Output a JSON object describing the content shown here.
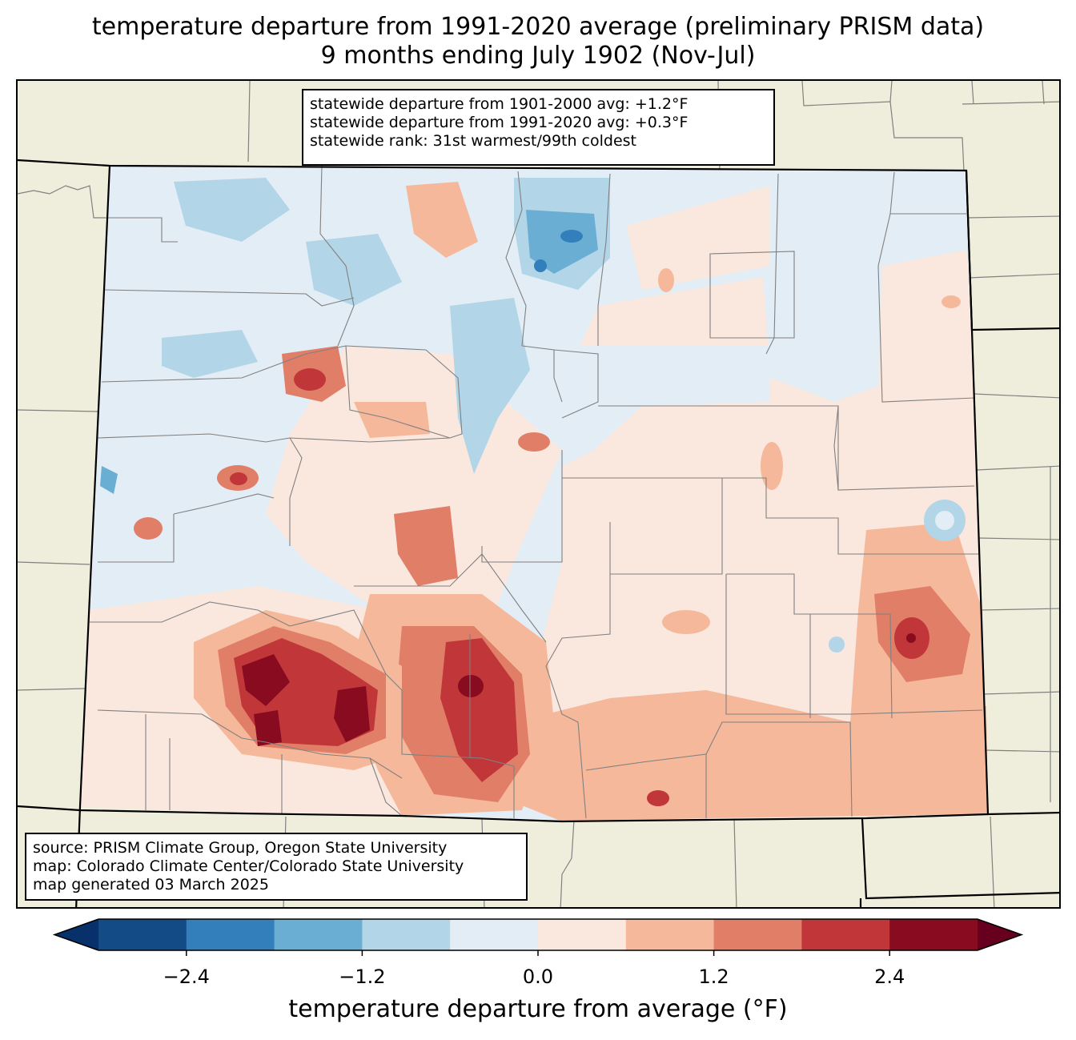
{
  "title": {
    "line1": "temperature departure from 1991-2020 average (preliminary PRISM data)",
    "line2": "9 months ending July 1902 (Nov-Jul)"
  },
  "stats": {
    "line1": "statewide departure from 1901-2000 avg: +1.2°F",
    "line2": "statewide departure from 1991-2020 avg: +0.3°F",
    "line3": "statewide rank: 31st warmest/99th coldest"
  },
  "source": {
    "line1": "source: PRISM Climate Group, Oregon State University",
    "line2": "map: Colorado Climate Center/Colorado State University",
    "line3": "map generated 03 March 2025"
  },
  "colorbar": {
    "label": "temperature departure from average (°F)",
    "ticks": [
      "−2.4",
      "−1.2",
      "0.0",
      "1.2",
      "2.4"
    ],
    "bins": [
      {
        "color": "#08306b",
        "range": "< -3.0"
      },
      {
        "color": "#134b87",
        "range": "-3.0 to -2.4"
      },
      {
        "color": "#327fbb",
        "range": "-2.4 to -1.8"
      },
      {
        "color": "#6aaed3",
        "range": "-1.8 to -1.2"
      },
      {
        "color": "#b2d5e7",
        "range": "-1.2 to -0.6"
      },
      {
        "color": "#e3edf5",
        "range": "-0.6 to 0.0"
      },
      {
        "color": "#fae8df",
        "range": "0.0 to 0.6"
      },
      {
        "color": "#f6b89b",
        "range": "0.6 to 1.2"
      },
      {
        "color": "#e17e68",
        "range": "1.2 to 1.8"
      },
      {
        "color": "#c13639",
        "range": "1.8 to 2.4"
      },
      {
        "color": "#880b20",
        "range": "2.4 to 3.0"
      },
      {
        "color": "#67001f",
        "range": "> 3.0"
      }
    ]
  },
  "map": {
    "background": "#efeddb",
    "county_line": "#808080",
    "state_line": "#000000"
  }
}
